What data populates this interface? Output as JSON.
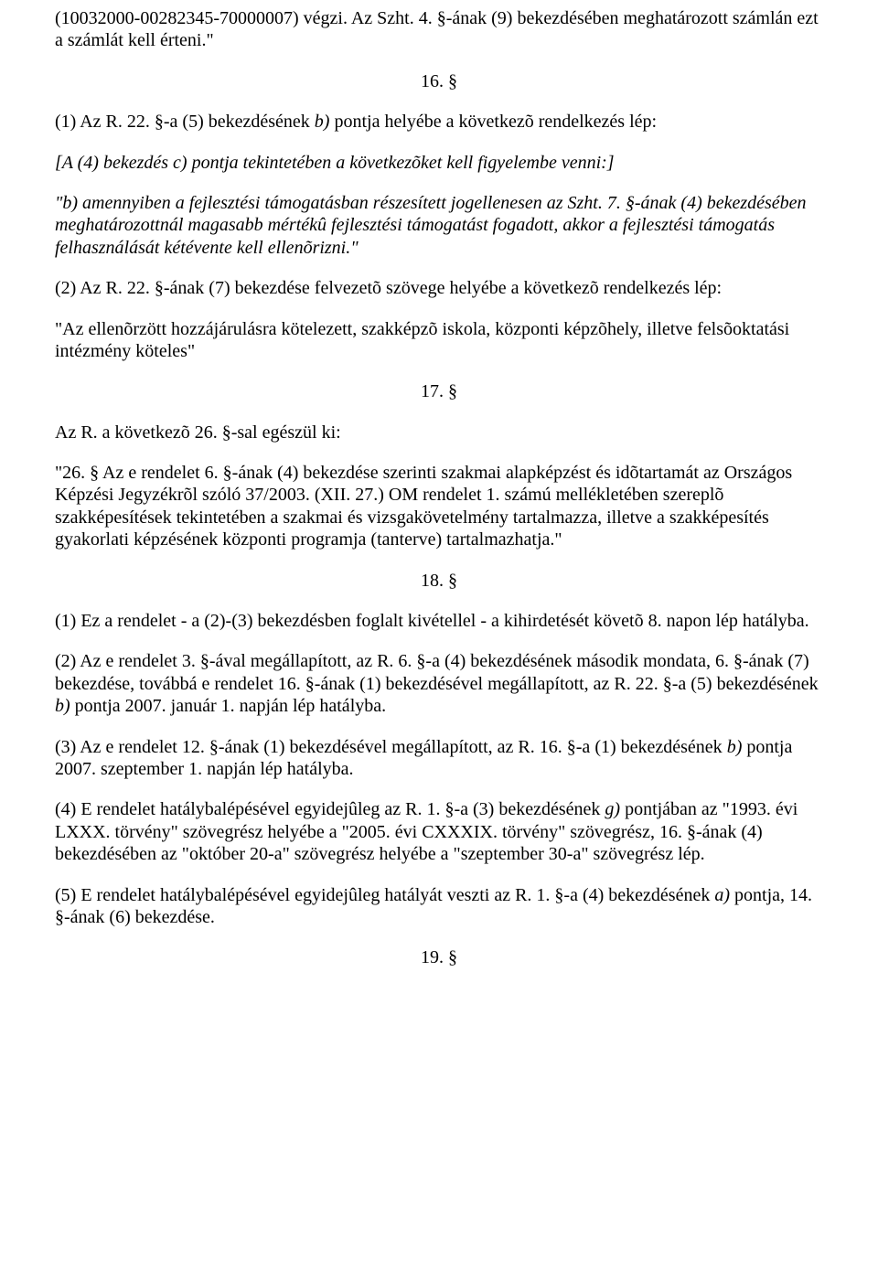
{
  "p1": "(10032000-00282345-70000007) végzi. Az Szht. 4. §-ának (9) bekezdésében meghatározott számlán ezt a számlát kell érteni.\"",
  "s16": "16. §",
  "p2a": "(1) Az R. 22. §-a (5) bekezdésének ",
  "p2b": "b)",
  "p2c": " pontja helyébe a következõ rendelkezés lép:",
  "p3": "[A (4) bekezdés c) pontja tekintetében a következõket kell figyelembe venni:]",
  "p4": "\"b) amennyiben a fejlesztési támogatásban részesített jogellenesen az Szht. 7. §-ának (4) bekezdésében meghatározottnál magasabb mértékû fejlesztési támogatást fogadott, akkor a fejlesztési támogatás felhasználását kétévente kell ellenõrizni.\"",
  "p5": "(2) Az R. 22. §-ának (7) bekezdése felvezetõ szövege helyébe a következõ rendelkezés lép:",
  "p6": "\"Az ellenõrzött hozzájárulásra kötelezett, szakképzõ iskola, központi képzõhely, illetve felsõoktatási intézmény köteles\"",
  "s17": "17. §",
  "p7": "Az R. a következõ 26. §-sal egészül ki:",
  "p8": "\"26. § Az e rendelet 6. §-ának (4) bekezdése szerinti szakmai alapképzést és idõtartamát az Országos Képzési Jegyzékrõl szóló 37/2003. (XII. 27.) OM rendelet 1. számú mellékletében szereplõ szakképesítések tekintetében a szakmai és vizsgakövetelmény tartalmazza, illetve a szakképesítés gyakorlati képzésének központi programja (tanterve) tartalmazhatja.\"",
  "s18": "18. §",
  "p9": "(1) Ez a rendelet - a (2)-(3) bekezdésben foglalt kivétellel - a kihirdetését követõ 8. napon lép hatályba.",
  "p10a": "(2) Az e rendelet 3. §-ával megállapított, az R. 6. §-a (4) bekezdésének második mondata, 6. §-ának (7) bekezdése, továbbá e rendelet 16. §-ának (1) bekezdésével megállapított, az R. 22. §-a (5) bekezdésének ",
  "p10b": "b)",
  "p10c": " pontja 2007. január 1. napján lép hatályba.",
  "p11a": "(3) Az e rendelet 12. §-ának (1) bekezdésével megállapított, az R. 16. §-a (1) bekezdésének ",
  "p11b": "b)",
  "p11c": " pontja 2007. szeptember 1. napján lép hatályba.",
  "p12a": "(4) E rendelet hatálybalépésével egyidejûleg az R. 1. §-a (3) bekezdésének ",
  "p12b": "g)",
  "p12c": " pontjában az \"1993. évi LXXX. törvény\" szövegrész helyébe a \"2005. évi CXXXIX. törvény\" szövegrész, 16. §-ának (4) bekezdésében az \"október 20-a\" szövegrész helyébe a \"szeptember 30-a\" szövegrész lép.",
  "p13a": "(5) E rendelet hatálybalépésével egyidejûleg hatályát veszti az R. 1. §-a (4) bekezdésének ",
  "p13b": "a)",
  "p13c": " pontja, 14. §-ának (6) bekezdése.",
  "s19": "19. §"
}
